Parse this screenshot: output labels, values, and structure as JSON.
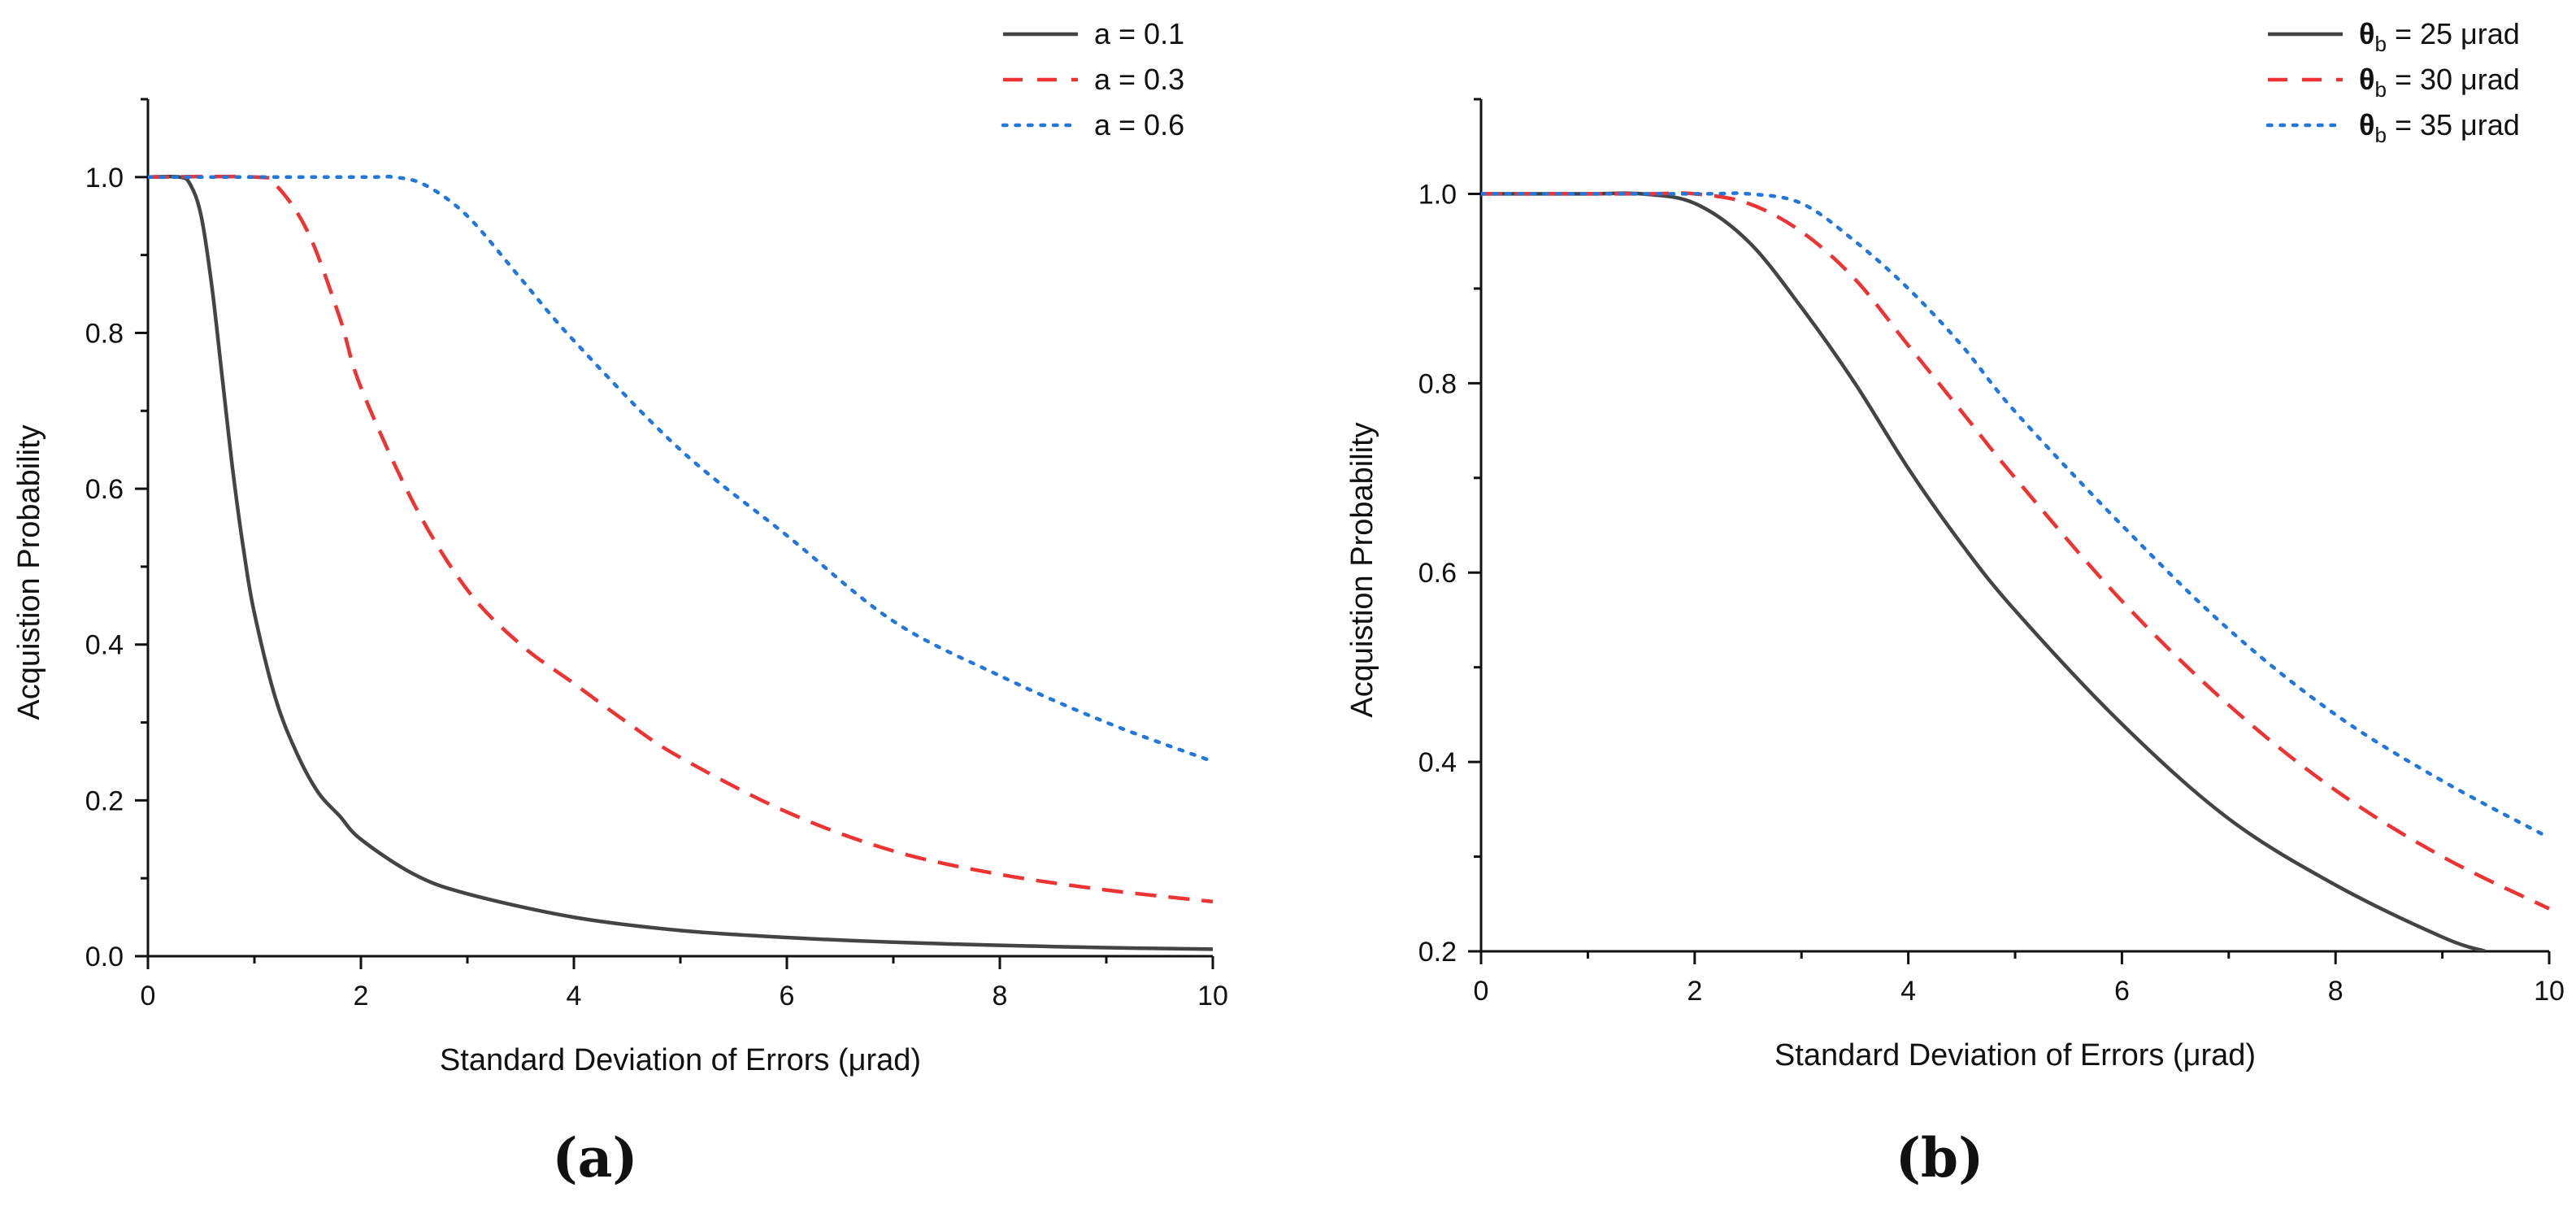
{
  "colors": {
    "black": "#444444",
    "red": "#ee3333",
    "blue": "#2277dd"
  },
  "chart_data": [
    {
      "type": "line",
      "panel": "(a)",
      "xlabel": "Standard Deviation of Errors (μrad)",
      "ylabel": "Acquistion Probability",
      "xlim": [
        0,
        10.0
      ],
      "ylim": [
        0,
        1.1
      ],
      "xticks": [
        0,
        2,
        4,
        6,
        8,
        10
      ],
      "yticks": [
        0.0,
        0.2,
        0.4,
        0.6,
        0.8,
        1.0
      ],
      "xtick_labels": [
        "0",
        "2",
        "4",
        "6",
        "8",
        "10"
      ],
      "ytick_labels": [
        "0.0",
        "0.2",
        "0.4",
        "0.6",
        "0.8",
        "1.0"
      ],
      "legend_position": "top-right",
      "series": [
        {
          "name": "a = 0.1",
          "style": "solid",
          "color": "#444444",
          "x": [
            0,
            0.3,
            0.4,
            0.5,
            0.6,
            0.7,
            0.8,
            0.9,
            1.0,
            1.2,
            1.4,
            1.6,
            1.8,
            2.0,
            2.5,
            3.0,
            4.0,
            5.0,
            6.0,
            7.0,
            8.0,
            9.0,
            10.0
          ],
          "values": [
            1.0,
            1.0,
            0.99,
            0.95,
            0.86,
            0.74,
            0.62,
            0.52,
            0.44,
            0.33,
            0.26,
            0.21,
            0.18,
            0.15,
            0.105,
            0.08,
            0.05,
            0.033,
            0.024,
            0.018,
            0.014,
            0.011,
            0.009
          ]
        },
        {
          "name": "a = 0.3",
          "style": "dashed",
          "color": "#ee3333",
          "x": [
            0,
            1.0,
            1.2,
            1.5,
            1.8,
            2.0,
            2.5,
            3.0,
            3.5,
            4.0,
            4.5,
            5.0,
            6.0,
            7.0,
            8.0,
            9.0,
            10.0
          ],
          "values": [
            1.0,
            1.0,
            0.99,
            0.93,
            0.82,
            0.73,
            0.58,
            0.47,
            0.4,
            0.35,
            0.3,
            0.255,
            0.185,
            0.135,
            0.105,
            0.085,
            0.07
          ]
        },
        {
          "name": "a = 0.6",
          "style": "dotted",
          "color": "#2277dd",
          "x": [
            0,
            2.0,
            2.3,
            2.6,
            3.0,
            3.5,
            4.0,
            5.0,
            6.0,
            7.0,
            8.0,
            9.0,
            10.0
          ],
          "values": [
            1.0,
            1.0,
            1.0,
            0.99,
            0.95,
            0.87,
            0.79,
            0.65,
            0.54,
            0.43,
            0.36,
            0.3,
            0.25
          ]
        }
      ]
    },
    {
      "type": "line",
      "panel": "(b)",
      "xlabel": "Standard Deviation of Errors (μrad)",
      "ylabel": "Acquistion Probability",
      "xlim": [
        0,
        10.0
      ],
      "ylim": [
        0.2,
        1.1
      ],
      "xticks": [
        0,
        2,
        4,
        6,
        8,
        10
      ],
      "yticks": [
        0.2,
        0.4,
        0.6,
        0.8,
        1.0
      ],
      "xtick_labels": [
        "0",
        "2",
        "4",
        "6",
        "8",
        "10"
      ],
      "ytick_labels": [
        "0.2",
        "0.4",
        "0.6",
        "0.8",
        "1.0"
      ],
      "legend_position": "top-right",
      "series": [
        {
          "name": "θb = 25 μrad",
          "label_main": "θ",
          "label_sub": "b",
          "label_rest": " = 25 μrad",
          "style": "solid",
          "color": "#444444",
          "x": [
            0,
            1.0,
            1.5,
            2.0,
            2.5,
            3.0,
            3.5,
            4.0,
            4.5,
            5.0,
            6.0,
            7.0,
            8.0,
            9.0,
            9.4
          ],
          "values": [
            1.0,
            1.0,
            1.0,
            0.99,
            0.95,
            0.88,
            0.8,
            0.71,
            0.63,
            0.56,
            0.44,
            0.34,
            0.27,
            0.215,
            0.2
          ]
        },
        {
          "name": "θb = 30 μrad",
          "label_main": "θ",
          "label_sub": "b",
          "label_rest": " = 30 μrad",
          "style": "dashed",
          "color": "#ee3333",
          "x": [
            0,
            1.5,
            2.0,
            2.5,
            3.0,
            3.5,
            4.0,
            4.5,
            5.0,
            6.0,
            7.0,
            8.0,
            9.0,
            10.0
          ],
          "values": [
            1.0,
            1.0,
            1.0,
            0.99,
            0.96,
            0.91,
            0.84,
            0.77,
            0.7,
            0.57,
            0.46,
            0.37,
            0.3,
            0.245
          ]
        },
        {
          "name": "θb = 35 μrad",
          "label_main": "θ",
          "label_sub": "b",
          "label_rest": " = 35 μrad",
          "style": "dotted",
          "color": "#2277dd",
          "x": [
            0,
            2.0,
            2.5,
            3.0,
            3.5,
            4.0,
            4.5,
            5.0,
            6.0,
            7.0,
            8.0,
            9.0,
            10.0
          ],
          "values": [
            1.0,
            1.0,
            1.0,
            0.99,
            0.95,
            0.9,
            0.84,
            0.77,
            0.65,
            0.54,
            0.45,
            0.38,
            0.32
          ]
        }
      ]
    }
  ]
}
